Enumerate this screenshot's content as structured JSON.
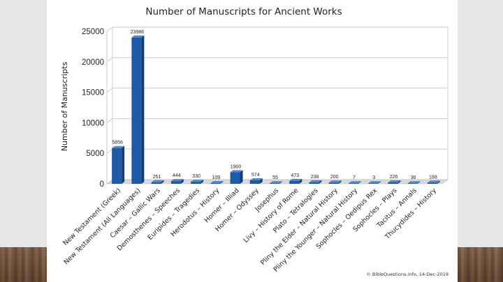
{
  "chart_data": {
    "type": "bar",
    "title": "Number of Manuscripts for Ancient Works",
    "xlabel": "",
    "ylabel": "Number of Manuscripts",
    "ylim": [
      0,
      25000
    ],
    "yticks": [
      0,
      5000,
      10000,
      15000,
      20000,
      25000
    ],
    "grid": true,
    "legend": "none",
    "bar_color": "#1f5aa6",
    "categories": [
      "New Testament (Greek)",
      "New Testament (All Languages)",
      "Caesar – Gallic Wars",
      "Demosthenes – Speeches",
      "Euripides – Tragedies",
      "Herodotus – History",
      "Homer – Illiad",
      "Homer – Odyssey",
      "Josephus",
      "Livy – History of Rome",
      "Plato – Tetralogies",
      "Pliny the Elder – Natural History",
      "Pliny the Younger – Natural History",
      "Sophocles – Oedipus Rex",
      "Sophocles – Plays",
      "Tacitus – Annals",
      "Thucydides – History"
    ],
    "values": [
      5856,
      23986,
      251,
      444,
      330,
      109,
      1900,
      574,
      55,
      473,
      238,
      200,
      7,
      3,
      226,
      36,
      188
    ],
    "value_labels": [
      "5856",
      "23986",
      "251",
      "444",
      "330",
      "109",
      "1900",
      "574",
      "55",
      "473",
      "238",
      "200",
      "7",
      "3",
      "226",
      "36",
      "188"
    ],
    "annotation": "© BibleQuestions.info, 14-Dec-2019"
  }
}
